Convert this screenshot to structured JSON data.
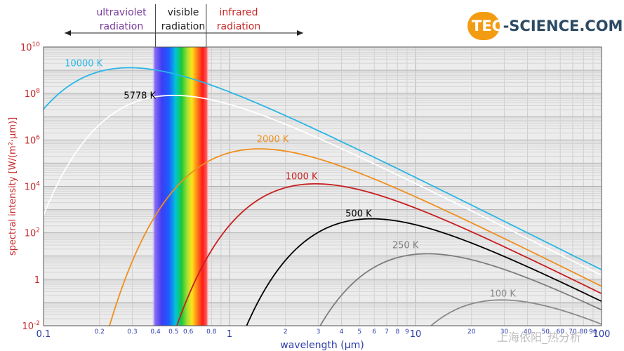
{
  "logo": {
    "text": "TEC-SCIENCE.COM",
    "accent": "#f39c12",
    "ink": "#2c4a63"
  },
  "bands": {
    "uv": {
      "label_line1": "ultraviolet",
      "label_line2": "radiation",
      "color": "#7a3d99"
    },
    "visible": {
      "label_line1": "visible",
      "label_line2": "radiation",
      "color": "#222222"
    },
    "ir": {
      "label_line1": "infrared",
      "label_line2": "radiation",
      "color": "#c62828"
    }
  },
  "watermark": "上海依阳_热分析",
  "chart_data": {
    "type": "line",
    "title": "",
    "xlabel": "wavelength (µm)",
    "ylabel": "spectral intensity [W/(m²·µm)]",
    "x_scale": "log",
    "y_scale": "log",
    "xlim": [
      0.1,
      100
    ],
    "ylim": [
      0.01,
      10000000000
    ],
    "grid": true,
    "x_ticks": [
      {
        "v": 0.1,
        "label": "0.1",
        "major": true
      },
      {
        "v": 0.2,
        "label": "0.2"
      },
      {
        "v": 0.3,
        "label": "0.3"
      },
      {
        "v": 0.4,
        "label": "0.4"
      },
      {
        "v": 0.5,
        "label": "0.5"
      },
      {
        "v": 0.6,
        "label": "0.6"
      },
      {
        "v": 0.8,
        "label": "0.8"
      },
      {
        "v": 1,
        "label": "1",
        "major": true
      },
      {
        "v": 2,
        "label": "2"
      },
      {
        "v": 3,
        "label": "3"
      },
      {
        "v": 4,
        "label": "4"
      },
      {
        "v": 5,
        "label": "5"
      },
      {
        "v": 6,
        "label": "6"
      },
      {
        "v": 7,
        "label": "7"
      },
      {
        "v": 8,
        "label": "8"
      },
      {
        "v": 9,
        "label": "9"
      },
      {
        "v": 10,
        "label": "10",
        "major": true
      },
      {
        "v": 20,
        "label": "20"
      },
      {
        "v": 30,
        "label": "30"
      },
      {
        "v": 40,
        "label": "40"
      },
      {
        "v": 50,
        "label": "50"
      },
      {
        "v": 60,
        "label": "60"
      },
      {
        "v": 70,
        "label": "70"
      },
      {
        "v": 80,
        "label": "80"
      },
      {
        "v": 90,
        "label": "90"
      },
      {
        "v": 100,
        "label": "100",
        "major": true
      }
    ],
    "y_ticks": [
      {
        "v": 0.01,
        "base": "10",
        "exp": "-2"
      },
      {
        "v": 1,
        "base": "1",
        "exp": ""
      },
      {
        "v": 100,
        "base": "10",
        "exp": "2"
      },
      {
        "v": 10000,
        "base": "10",
        "exp": "4"
      },
      {
        "v": 1000000,
        "base": "10",
        "exp": "6"
      },
      {
        "v": 100000000,
        "base": "10",
        "exp": "8"
      },
      {
        "v": 10000000000,
        "base": "10",
        "exp": "10"
      }
    ],
    "visible_range_um": [
      0.38,
      0.78
    ],
    "series": [
      {
        "name": "10000 K",
        "temperature_K": 10000,
        "color": "#29b6e6",
        "label_at": [
          0.13,
          1500000000.0
        ]
      },
      {
        "name": "5778 K",
        "temperature_K": 5778,
        "color": "#ffffff",
        "label_color": "#000000",
        "label_at": [
          0.27,
          60000000.0
        ]
      },
      {
        "name": "2000 K",
        "temperature_K": 2000,
        "color": "#ef8f1c",
        "label_at": [
          1.4,
          800000.0
        ]
      },
      {
        "name": "1000 K",
        "temperature_K": 1000,
        "color": "#c81e1e",
        "label_at": [
          2.0,
          20000.0
        ]
      },
      {
        "name": "500 K",
        "temperature_K": 500,
        "color": "#000000",
        "label_at": [
          4.2,
          500.0
        ]
      },
      {
        "name": "250 K",
        "temperature_K": 250,
        "color": "#7d7d7d",
        "label_at": [
          7.5,
          22
        ]
      },
      {
        "name": "100 K",
        "temperature_K": 100,
        "color": "#8a8a8a",
        "label_at": [
          25,
          0.18
        ]
      }
    ]
  }
}
